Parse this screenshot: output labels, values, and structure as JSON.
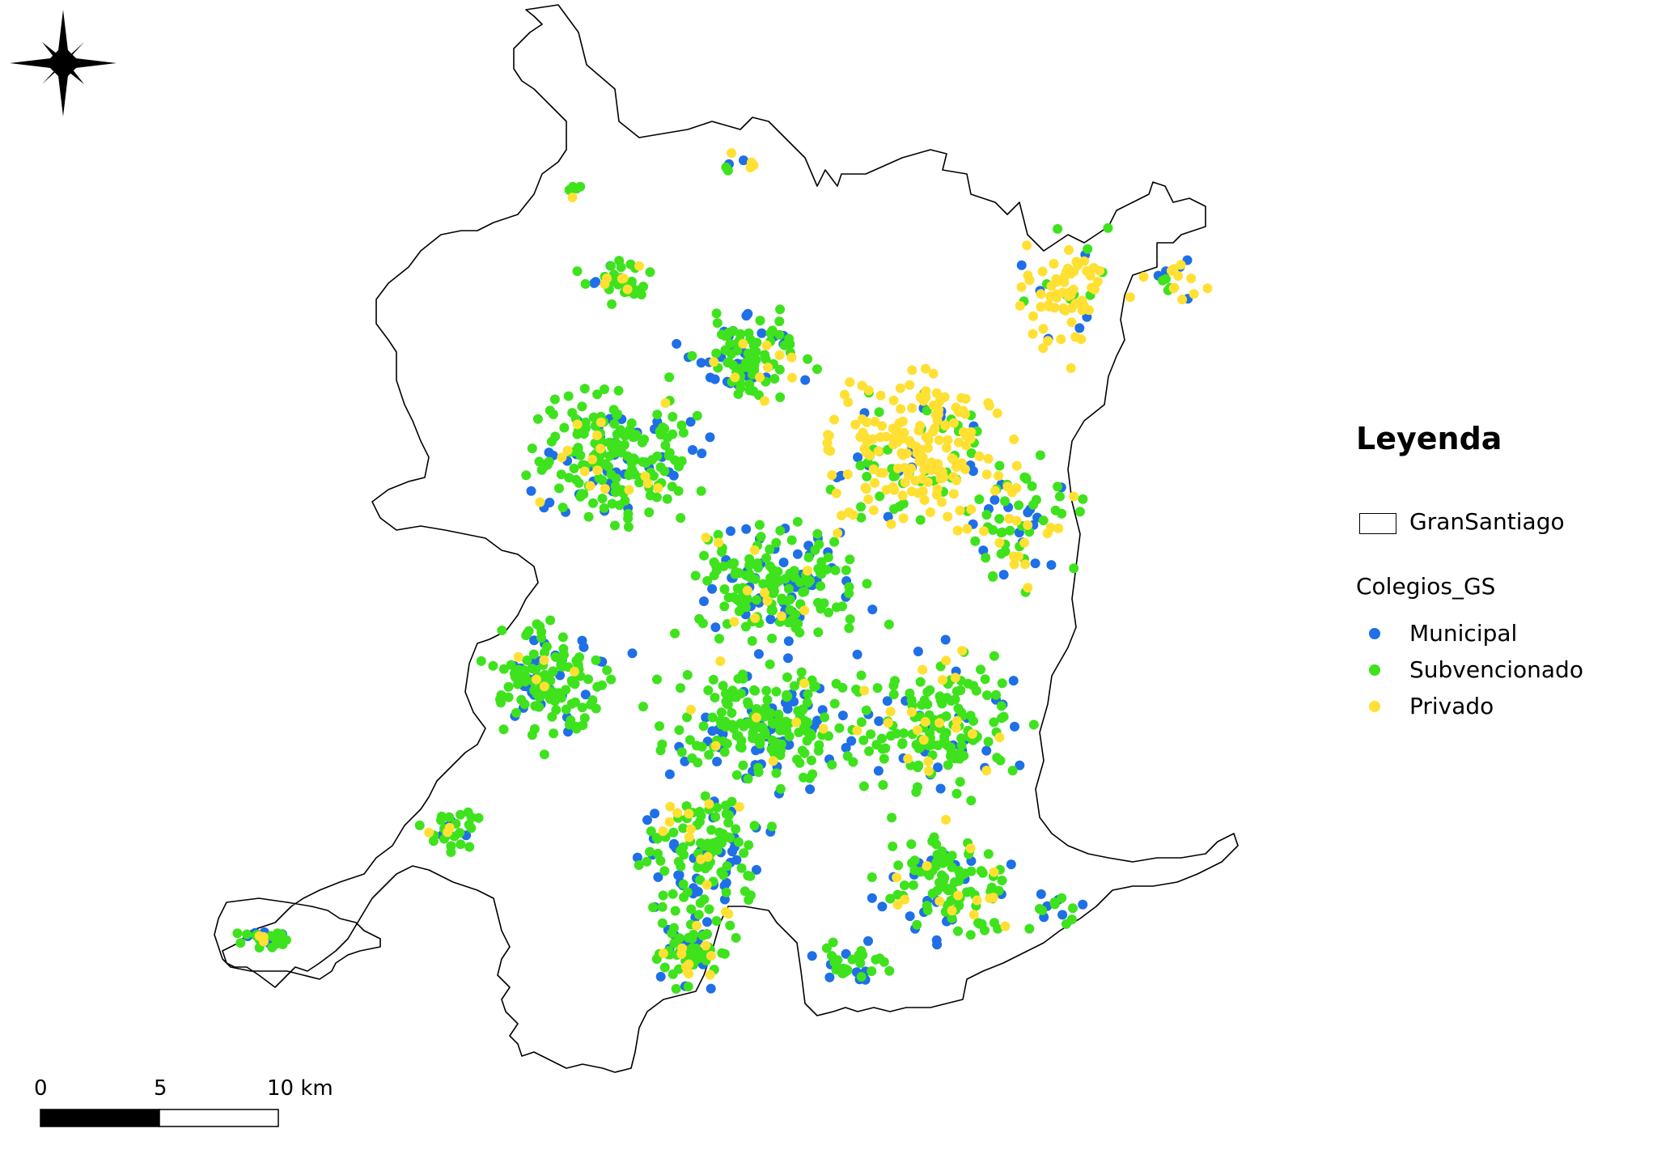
{
  "legend": {
    "title": "Leyenda",
    "boundary_layer": "GranSantiago",
    "points_layer": "Colegios_GS",
    "categories": [
      {
        "key": "municipal",
        "label": "Municipal",
        "color": "#1f6fe6"
      },
      {
        "key": "subvencionado",
        "label": "Subvencionado",
        "color": "#3ee21d"
      },
      {
        "key": "privado",
        "label": "Privado",
        "color": "#ffe033"
      }
    ]
  },
  "scale_bar": {
    "labels": [
      "0",
      "5",
      "10 km"
    ]
  },
  "north_arrow": {
    "icon": "compass-star-icon"
  },
  "style": {
    "boundary_stroke": "#000000",
    "boundary_fill": "#ffffff"
  }
}
